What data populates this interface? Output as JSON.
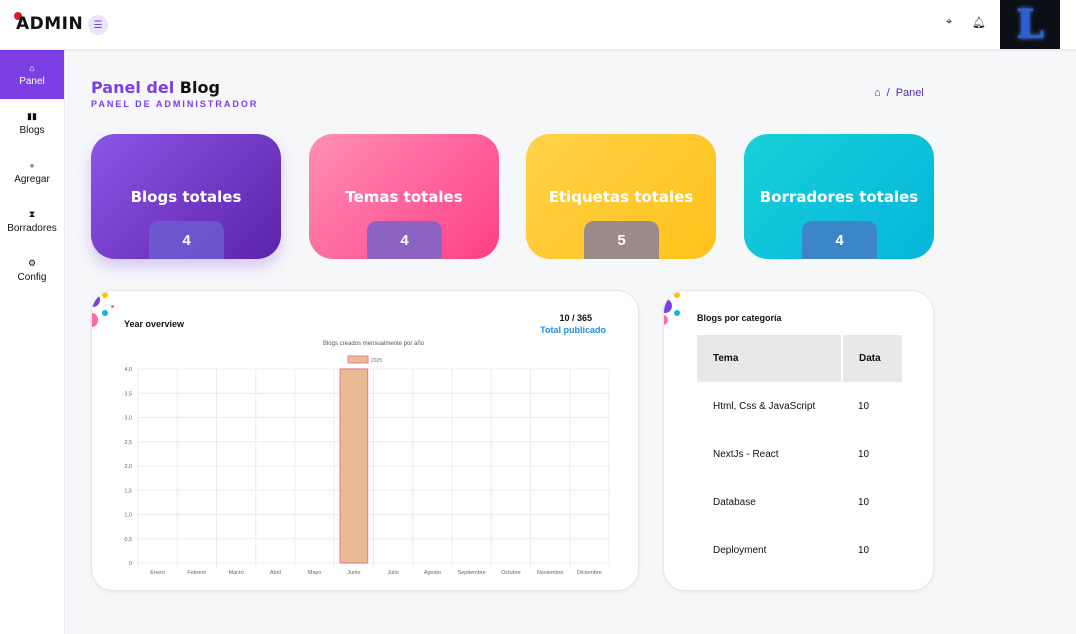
{
  "topbar": {
    "logo": "ADMIN",
    "avatar_letter": "L"
  },
  "sidebar": {
    "items": [
      {
        "label": "Panel",
        "icon": "home-icon",
        "glyph": "⌂",
        "active": true
      },
      {
        "label": "Blogs",
        "icon": "book-icon",
        "glyph": "▮▮",
        "active": false
      },
      {
        "label": "Agregar",
        "icon": "plus-icon",
        "glyph": "+",
        "active": false
      },
      {
        "label": "Borradores",
        "icon": "hourglass-icon",
        "glyph": "⧗",
        "active": false
      },
      {
        "label": "Config",
        "icon": "gear-icon",
        "glyph": "⚙",
        "active": false
      }
    ]
  },
  "header": {
    "title_accent": "Panel del",
    "title_rest": "Blog",
    "subtitle": "PANEL DE ADMINISTRADOR",
    "breadcrumb": "Panel",
    "breadcrumb_sep": "/"
  },
  "stats": [
    {
      "label": "Blogs totales",
      "value": "4"
    },
    {
      "label": "Temas totales",
      "value": "4"
    },
    {
      "label": "Etiquetas totales",
      "value": "5"
    },
    {
      "label": "Borradores totales",
      "value": "4"
    }
  ],
  "year_overview": {
    "title": "Year overview",
    "count": "10 / 365",
    "link": "Total publicado"
  },
  "chart_data": {
    "type": "bar",
    "title": "Blogs creados mensualmente por año",
    "categories": [
      "Enero",
      "Febrero",
      "Marzo",
      "Abril",
      "Mayo",
      "Junio",
      "Julio",
      "Agosto",
      "Septiembre",
      "Octubre",
      "Noviembre",
      "Diciembre"
    ],
    "series": [
      {
        "name": "2025",
        "values": [
          0,
          0,
          0,
          0,
          0,
          4,
          0,
          0,
          0,
          0,
          0,
          0
        ],
        "color": "#e9bb92",
        "border": "#e58090"
      }
    ],
    "yticks": [
      "0",
      "0,5",
      "1,0",
      "1,5",
      "2,0",
      "2,5",
      "3,0",
      "3,5",
      "4,0"
    ],
    "ylim": [
      0,
      4
    ],
    "xlabel": "",
    "ylabel": "",
    "grid": true,
    "legend": "top"
  },
  "categories_panel": {
    "title": "Blogs por categoría",
    "headers": [
      "Tema",
      "Data"
    ],
    "rows": [
      {
        "tema": "Html, Css & JavaScript",
        "data": "10"
      },
      {
        "tema": "NextJs - React",
        "data": "10"
      },
      {
        "tema": "Database",
        "data": "10"
      },
      {
        "tema": "Deployment",
        "data": "10"
      }
    ]
  }
}
